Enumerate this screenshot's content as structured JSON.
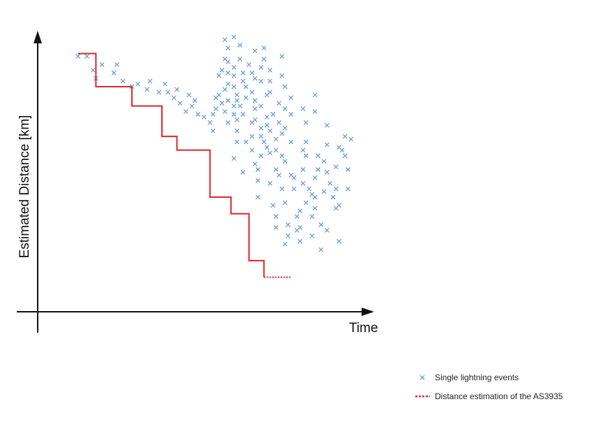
{
  "chart_data": {
    "type": "scatter",
    "title": "",
    "xlabel": "Time",
    "ylabel": "Estimated Distance [km]",
    "xlim": [
      0,
      100
    ],
    "ylim": [
      0,
      100
    ],
    "grid": false,
    "legend_placement": "bottom-right",
    "colors": {
      "events": "#6f9bd4",
      "estimation": "#e0262b",
      "axis": "#111111"
    },
    "series": [
      {
        "name": "Single lightning events",
        "type": "scatter",
        "marker": "x",
        "points": [
          [
            12,
            91
          ],
          [
            15,
            91
          ],
          [
            17,
            86
          ],
          [
            18,
            83
          ],
          [
            20,
            88
          ],
          [
            24,
            85
          ],
          [
            25,
            88
          ],
          [
            27,
            82
          ],
          [
            30,
            80
          ],
          [
            32,
            81
          ],
          [
            35,
            79
          ],
          [
            36,
            82
          ],
          [
            39,
            78
          ],
          [
            41,
            81
          ],
          [
            42,
            78
          ],
          [
            44,
            76
          ],
          [
            45,
            79
          ],
          [
            46,
            74
          ],
          [
            48,
            71
          ],
          [
            49,
            77
          ],
          [
            50,
            73
          ],
          [
            51,
            75
          ],
          [
            52,
            70
          ],
          [
            54,
            69
          ],
          [
            56,
            67
          ],
          [
            57,
            64
          ],
          [
            57,
            70
          ],
          [
            58,
            72
          ],
          [
            58,
            76
          ],
          [
            59,
            77
          ],
          [
            59,
            84
          ],
          [
            60,
            74
          ],
          [
            60,
            86
          ],
          [
            61,
            71
          ],
          [
            61,
            79
          ],
          [
            61,
            90
          ],
          [
            61,
            97
          ],
          [
            62,
            67
          ],
          [
            62,
            75
          ],
          [
            62,
            81
          ],
          [
            62,
            85
          ],
          [
            62,
            89
          ],
          [
            62,
            94
          ],
          [
            64,
            70
          ],
          [
            64,
            73
          ],
          [
            64,
            80
          ],
          [
            64,
            84
          ],
          [
            64,
            87
          ],
          [
            64,
            98
          ],
          [
            64,
            54
          ],
          [
            65,
            60
          ],
          [
            65,
            64
          ],
          [
            65,
            68
          ],
          [
            65,
            75
          ],
          [
            65,
            77
          ],
          [
            66,
            73
          ],
          [
            66,
            95
          ],
          [
            66,
            90
          ],
          [
            67,
            85
          ],
          [
            67,
            82
          ],
          [
            67,
            70
          ],
          [
            67,
            49
          ],
          [
            68,
            80
          ],
          [
            68,
            76
          ],
          [
            68,
            60
          ],
          [
            69,
            88
          ],
          [
            70,
            85
          ],
          [
            70,
            78
          ],
          [
            70,
            67
          ],
          [
            70,
            62
          ],
          [
            70,
            57
          ],
          [
            71,
            93
          ],
          [
            71,
            83
          ],
          [
            71,
            75
          ],
          [
            71,
            72
          ],
          [
            71,
            68
          ],
          [
            71,
            52
          ],
          [
            72,
            50
          ],
          [
            72,
            46
          ],
          [
            72,
            40
          ],
          [
            73,
            87
          ],
          [
            73,
            82
          ],
          [
            73,
            73
          ],
          [
            73,
            65
          ],
          [
            73,
            62
          ],
          [
            73,
            55
          ],
          [
            74,
            94
          ],
          [
            74,
            90
          ],
          [
            74,
            60
          ],
          [
            75,
            77
          ],
          [
            75,
            69
          ],
          [
            75,
            66
          ],
          [
            75,
            58
          ],
          [
            76,
            86
          ],
          [
            76,
            82
          ],
          [
            76,
            78
          ],
          [
            76,
            64
          ],
          [
            76,
            56
          ],
          [
            76,
            45
          ],
          [
            77,
            70
          ],
          [
            77,
            37
          ],
          [
            78,
            61
          ],
          [
            78,
            57
          ],
          [
            78,
            50
          ],
          [
            78,
            29
          ],
          [
            78,
            33
          ],
          [
            79,
            74
          ],
          [
            79,
            67
          ],
          [
            79,
            48
          ],
          [
            80,
            91
          ],
          [
            80,
            84
          ],
          [
            80,
            63
          ],
          [
            80,
            55
          ],
          [
            80,
            43
          ],
          [
            81,
            80
          ],
          [
            81,
            72
          ],
          [
            81,
            65
          ],
          [
            81,
            53
          ],
          [
            81,
            38
          ],
          [
            81,
            23
          ],
          [
            82,
            30
          ],
          [
            82,
            26
          ],
          [
            83,
            76
          ],
          [
            83,
            70
          ],
          [
            83,
            60
          ],
          [
            83,
            48
          ],
          [
            84,
            47
          ],
          [
            84,
            43
          ],
          [
            85,
            33
          ],
          [
            85,
            28
          ],
          [
            86,
            35
          ],
          [
            86,
            29
          ],
          [
            86,
            24
          ],
          [
            87,
            72
          ],
          [
            87,
            57
          ],
          [
            87,
            50
          ],
          [
            87,
            45
          ],
          [
            88,
            67
          ],
          [
            88,
            60
          ],
          [
            88,
            55
          ],
          [
            88,
            38
          ],
          [
            89,
            43
          ],
          [
            90,
            41
          ],
          [
            90,
            33
          ],
          [
            90,
            26
          ],
          [
            91,
            77
          ],
          [
            91,
            71
          ],
          [
            91,
            47
          ],
          [
            91,
            40
          ],
          [
            91,
            36
          ],
          [
            92,
            55
          ],
          [
            92,
            50
          ],
          [
            93,
            30
          ],
          [
            93,
            21
          ],
          [
            94,
            53
          ],
          [
            94,
            42
          ],
          [
            95,
            66
          ],
          [
            95,
            59
          ],
          [
            95,
            49
          ],
          [
            95,
            28
          ],
          [
            96,
            45
          ],
          [
            97,
            40
          ],
          [
            98,
            51
          ],
          [
            98,
            43
          ],
          [
            98,
            36
          ],
          [
            99,
            58
          ],
          [
            99,
            37
          ],
          [
            99,
            24
          ],
          [
            100,
            57
          ],
          [
            101,
            62
          ],
          [
            101,
            55
          ],
          [
            102,
            50
          ],
          [
            102,
            43
          ],
          [
            103,
            61
          ]
        ]
      },
      {
        "name": "Distance estimation of the AS3935",
        "type": "line",
        "step": "post",
        "points": [
          [
            12,
            92
          ],
          [
            18,
            92
          ],
          [
            18,
            80
          ],
          [
            30,
            80
          ],
          [
            30,
            73
          ],
          [
            40,
            73
          ],
          [
            40,
            62
          ],
          [
            45,
            62
          ],
          [
            45,
            57
          ],
          [
            56,
            57
          ],
          [
            56,
            40
          ],
          [
            63,
            40
          ],
          [
            63,
            34
          ],
          [
            69,
            34
          ],
          [
            69,
            17
          ],
          [
            74,
            17
          ],
          [
            74,
            11
          ]
        ],
        "dotted_tail": [
          [
            74,
            11
          ],
          [
            83,
            11
          ]
        ]
      }
    ],
    "legend": [
      {
        "label": "Single lightning events",
        "marker": "x"
      },
      {
        "label": "Distance estimation of the AS3935",
        "marker": "dashed-line"
      }
    ]
  }
}
